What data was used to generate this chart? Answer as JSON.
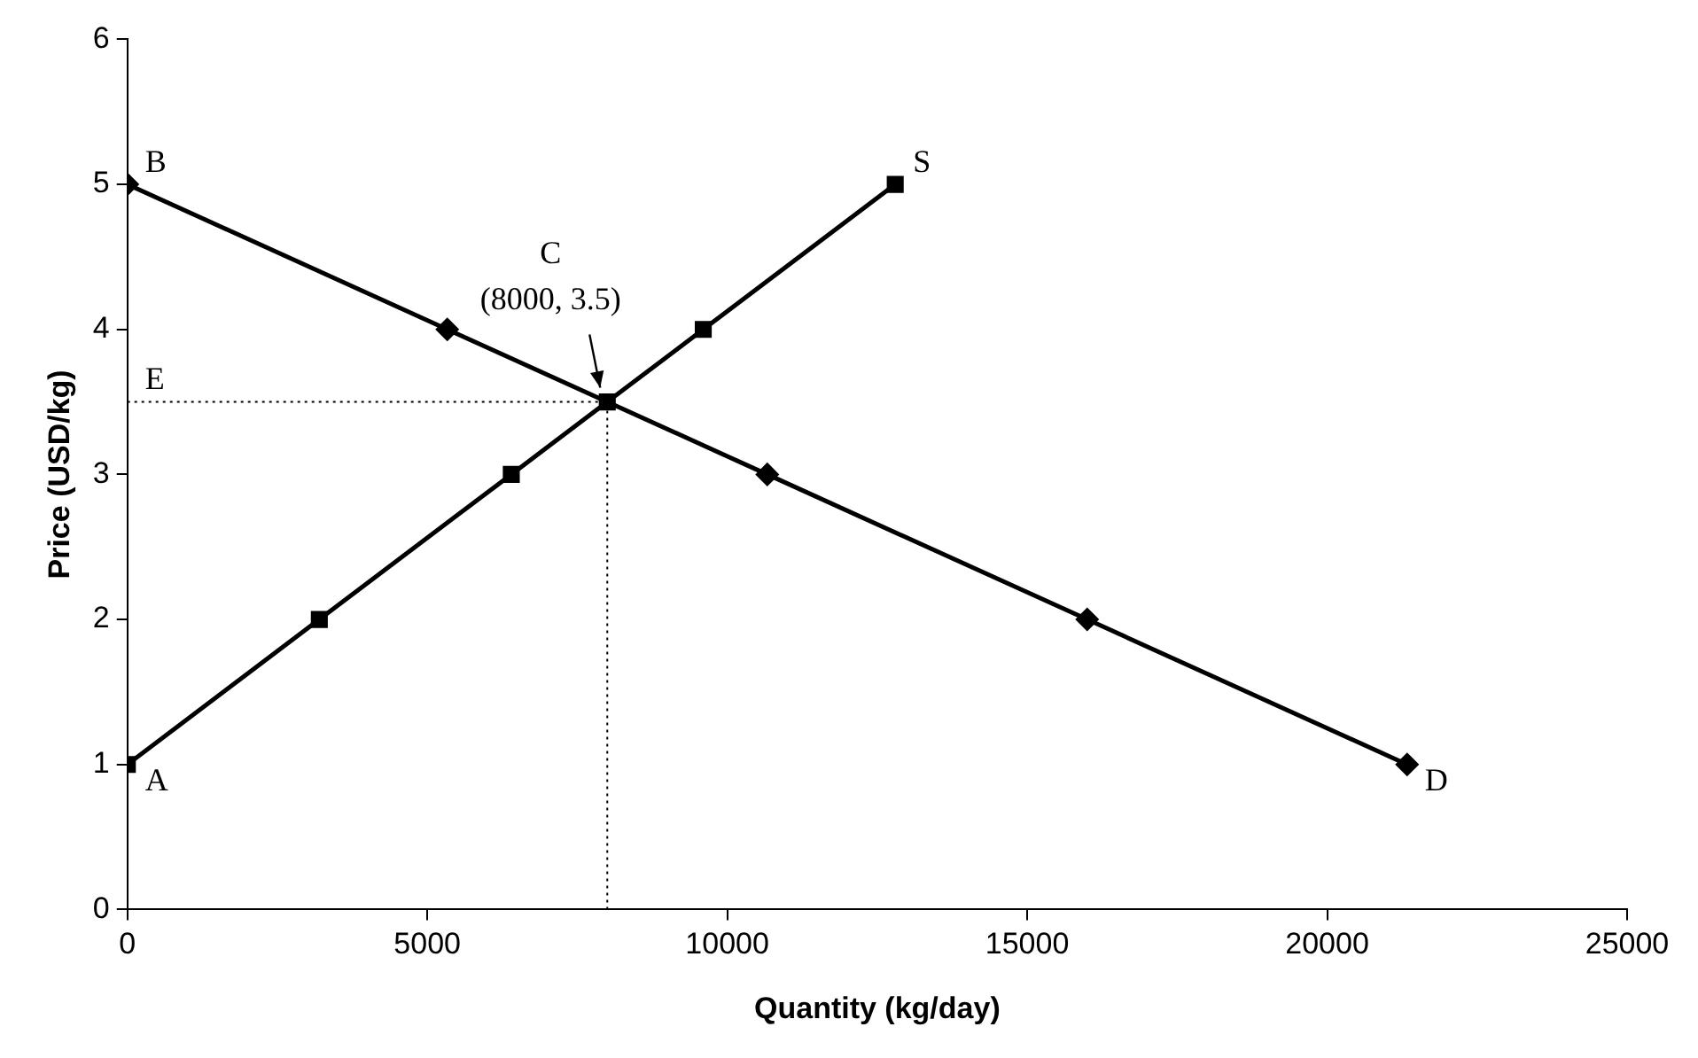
{
  "chart_data": {
    "type": "line",
    "xlabel": "Quantity (kg/day)",
    "ylabel": "Price (USD/kg)",
    "series": [
      {
        "type": "line",
        "color": "#000000",
        "marker": "diamond",
        "line_style": "solid",
        "x": [
          0,
          5333,
          10667,
          16000,
          21333
        ],
        "values": [
          5,
          4,
          3,
          2,
          1
        ]
      },
      {
        "type": "line",
        "color": "#000000",
        "marker": "square",
        "line_style": "solid",
        "x": [
          0,
          3200,
          6400,
          8000,
          9600,
          12800
        ],
        "values": [
          1,
          2,
          3,
          3.5,
          4,
          5
        ]
      },
      {
        "type": "line",
        "color": "#000000",
        "marker": "none",
        "line_style": "dotted",
        "x": [
          0,
          8000
        ],
        "values": [
          3.5,
          3.5
        ]
      },
      {
        "type": "line",
        "color": "#000000",
        "marker": "none",
        "line_style": "dotted",
        "x": [
          8000,
          8000
        ],
        "values": [
          0,
          3.5
        ]
      }
    ],
    "xlim": [
      0,
      25000
    ],
    "xticks": [
      0,
      5000,
      10000,
      15000,
      20000,
      25000
    ],
    "ylim": [
      0,
      6
    ],
    "yticks": [
      0,
      1,
      2,
      3,
      4,
      5,
      6
    ],
    "grid": false,
    "legend": false,
    "annotations": [
      {
        "text": "B",
        "x": 0,
        "y": 5
      },
      {
        "text": "A",
        "x": 0,
        "y": 1
      },
      {
        "text": "S",
        "x": 12800,
        "y": 5
      },
      {
        "text": "D",
        "x": 21333,
        "y": 1
      },
      {
        "text": "E",
        "x": 0,
        "y": 3.5
      },
      {
        "text": "C\n(8000, 3.5)",
        "x": 8000,
        "y": 3.5
      }
    ]
  }
}
